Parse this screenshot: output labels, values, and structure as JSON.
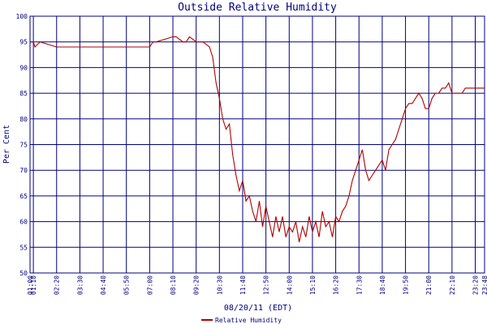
{
  "chart_data": {
    "type": "line",
    "title": "Outside Relative Humidity",
    "xlabel": "08/20/11 (EDT)",
    "ylabel": "Per Cent",
    "ylim": [
      50,
      100
    ],
    "yticks": [
      50,
      55,
      60,
      65,
      70,
      75,
      80,
      85,
      90,
      95,
      100
    ],
    "xtick_labels": [
      "01:00",
      "01:10",
      "02:20",
      "03:30",
      "04:40",
      "05:50",
      "07:00",
      "08:10",
      "09:20",
      "10:30",
      "11:40",
      "12:50",
      "14:00",
      "15:10",
      "16:20",
      "17:30",
      "18:40",
      "19:50",
      "21:00",
      "22:10",
      "23:20",
      "23:48"
    ],
    "grid": true,
    "legend_position": "bottom-center",
    "colors": {
      "series": "#b00000",
      "grid": "#000080",
      "text": "#000080"
    },
    "series": [
      {
        "name": "Relative Humidity",
        "x": [
          "01:00",
          "01:10",
          "01:15",
          "01:30",
          "02:20",
          "03:30",
          "04:40",
          "05:50",
          "07:00",
          "07:10",
          "07:20",
          "08:10",
          "08:20",
          "08:40",
          "08:50",
          "09:00",
          "09:20",
          "09:40",
          "10:00",
          "10:10",
          "10:20",
          "10:30",
          "10:40",
          "10:50",
          "11:00",
          "11:10",
          "11:20",
          "11:30",
          "11:40",
          "11:50",
          "12:00",
          "12:10",
          "12:20",
          "12:30",
          "12:40",
          "12:50",
          "13:00",
          "13:10",
          "13:20",
          "13:30",
          "13:40",
          "13:50",
          "14:00",
          "14:10",
          "14:20",
          "14:30",
          "14:40",
          "14:50",
          "15:00",
          "15:10",
          "15:20",
          "15:30",
          "15:40",
          "15:50",
          "16:00",
          "16:10",
          "16:20",
          "16:30",
          "16:40",
          "16:50",
          "17:00",
          "17:10",
          "17:20",
          "17:30",
          "17:40",
          "17:50",
          "18:00",
          "18:10",
          "18:20",
          "18:30",
          "18:40",
          "18:50",
          "19:00",
          "19:10",
          "19:20",
          "19:30",
          "19:40",
          "19:50",
          "20:00",
          "20:10",
          "20:20",
          "20:30",
          "20:40",
          "20:50",
          "21:00",
          "21:10",
          "21:20",
          "21:30",
          "21:40",
          "21:50",
          "22:00",
          "22:10",
          "22:20",
          "22:30",
          "22:40",
          "22:50",
          "23:00",
          "23:10",
          "23:20",
          "23:30",
          "23:40",
          "23:48"
        ],
        "values": [
          95,
          95,
          94,
          95,
          94,
          94,
          94,
          94,
          94,
          95,
          95,
          96,
          96,
          95,
          95,
          96,
          95,
          95,
          94,
          92,
          87,
          84,
          80,
          78,
          79,
          73,
          69,
          66,
          68,
          64,
          65,
          62,
          60,
          64,
          59,
          63,
          60,
          57,
          61,
          58,
          61,
          57,
          59,
          58,
          60,
          56,
          59,
          57,
          61,
          58,
          60,
          57,
          62,
          59,
          60,
          57,
          61,
          60,
          62,
          63,
          65,
          68,
          70,
          72,
          74,
          70,
          68,
          69,
          70,
          71,
          72,
          70,
          74,
          75,
          76,
          78,
          80,
          82,
          83,
          83,
          84,
          85,
          84,
          82,
          82,
          84,
          85,
          85,
          86,
          86,
          87,
          85,
          85,
          85,
          85,
          86,
          86,
          86,
          86,
          86,
          86,
          86
        ]
      }
    ]
  }
}
